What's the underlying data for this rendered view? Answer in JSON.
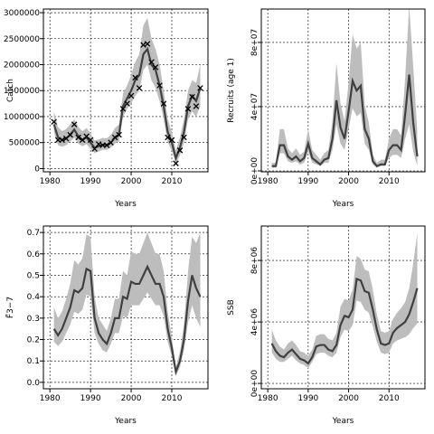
{
  "chart_data": [
    {
      "type": "line",
      "y_label": "Catch",
      "x_label": "Years",
      "x": [
        1981,
        1982,
        1983,
        1984,
        1985,
        1986,
        1987,
        1988,
        1989,
        1990,
        1991,
        1992,
        1993,
        1994,
        1995,
        1996,
        1997,
        1998,
        1999,
        2000,
        2001,
        2002,
        2003,
        2004,
        2005,
        2006,
        2007,
        2008,
        2009,
        2010,
        2011,
        2012,
        2013,
        2014,
        2015,
        2016,
        2017
      ],
      "values": [
        850000,
        600000,
        550000,
        580000,
        650000,
        750000,
        620000,
        550000,
        600000,
        500000,
        400000,
        430000,
        460000,
        450000,
        500000,
        600000,
        650000,
        1200000,
        1350000,
        1500000,
        1700000,
        1800000,
        2200000,
        2300000,
        2000000,
        1900000,
        1600000,
        1200000,
        700000,
        500000,
        200000,
        400000,
        700000,
        1200000,
        1400000,
        1300000,
        1550000
      ],
      "lower": [
        700000,
        450000,
        420000,
        450000,
        520000,
        600000,
        480000,
        430000,
        470000,
        380000,
        300000,
        330000,
        360000,
        360000,
        400000,
        480000,
        520000,
        1000000,
        1150000,
        1250000,
        1400000,
        1500000,
        1900000,
        2000000,
        1700000,
        1550000,
        1300000,
        950000,
        500000,
        350000,
        100000,
        250000,
        500000,
        950000,
        1100000,
        1000000,
        1200000
      ],
      "upper": [
        1100000,
        800000,
        720000,
        760000,
        850000,
        950000,
        800000,
        720000,
        780000,
        680000,
        540000,
        560000,
        590000,
        580000,
        650000,
        780000,
        850000,
        1450000,
        1600000,
        1800000,
        2050000,
        2200000,
        2750000,
        2900000,
        2500000,
        2300000,
        2000000,
        1500000,
        950000,
        700000,
        350000,
        600000,
        950000,
        1500000,
        1700000,
        1650000,
        2000000
      ],
      "observed": [
        900000,
        550000,
        550000,
        580000,
        650000,
        850000,
        600000,
        550000,
        620000,
        550000,
        380000,
        470000,
        450000,
        450000,
        500000,
        600000,
        650000,
        1150000,
        1250000,
        1400000,
        1750000,
        1550000,
        2380000,
        2400000,
        2050000,
        1950000,
        1600000,
        1250000,
        600000,
        550000,
        100000,
        350000,
        600000,
        1150000,
        1380000,
        1200000,
        1550000
      ],
      "color": "#404040",
      "band_color": "#bdbdbd",
      "grid": true,
      "xlim": [
        1978.4,
        2018.9
      ],
      "xticks": [
        1980,
        1990,
        2000,
        2010
      ],
      "ylim": [
        -62000,
        3070000
      ],
      "yticks": [
        0,
        500000,
        1000000,
        1500000,
        2000000,
        2500000,
        3000000
      ]
    },
    {
      "type": "line",
      "y_label": "Recruits (age 1)",
      "x_label": "Years",
      "x": [
        1981,
        1982,
        1983,
        1984,
        1985,
        1986,
        1987,
        1988,
        1989,
        1990,
        1991,
        1992,
        1993,
        1994,
        1995,
        1996,
        1997,
        1998,
        1999,
        2000,
        2001,
        2002,
        2003,
        2004,
        2005,
        2006,
        2007,
        2008,
        2009,
        2010,
        2011,
        2012,
        2013,
        2014,
        2015,
        2016,
        2017
      ],
      "values": [
        3000000,
        3000000,
        16000000,
        16000000,
        9000000,
        7000000,
        9000000,
        6000000,
        8000000,
        17000000,
        8000000,
        6000000,
        4000000,
        7000000,
        8000000,
        20000000,
        44000000,
        27000000,
        20000000,
        37000000,
        56000000,
        50000000,
        53000000,
        26000000,
        20000000,
        6000000,
        3000000,
        4000000,
        4000000,
        13000000,
        16000000,
        16000000,
        13000000,
        35000000,
        60000000,
        30000000,
        9000000
      ],
      "lower": [
        2000000,
        2000000,
        11000000,
        11000000,
        6000000,
        5000000,
        6000000,
        4000000,
        5000000,
        12000000,
        5000000,
        4000000,
        3000000,
        5000000,
        5000000,
        13000000,
        29000000,
        17000000,
        13000000,
        26000000,
        39000000,
        34000000,
        36000000,
        17000000,
        13000000,
        4000000,
        2000000,
        3000000,
        3000000,
        8000000,
        10000000,
        10000000,
        8000000,
        20000000,
        29000000,
        12000000,
        3000000
      ],
      "upper": [
        5000000,
        5000000,
        26000000,
        26000000,
        14000000,
        11000000,
        14000000,
        10000000,
        12000000,
        26000000,
        13000000,
        10000000,
        7000000,
        11000000,
        13000000,
        31000000,
        67000000,
        42000000,
        31000000,
        55000000,
        85000000,
        76000000,
        80000000,
        41000000,
        30000000,
        10000000,
        5000000,
        7000000,
        7000000,
        20000000,
        26000000,
        26000000,
        22000000,
        58000000,
        103000000,
        65000000,
        25000000
      ],
      "color": "#404040",
      "band_color": "#bdbdbd",
      "grid": true,
      "xlim": [
        1978.4,
        2018.9
      ],
      "xticks": [
        1980,
        1990,
        2000,
        2010
      ],
      "ylim": [
        -560000,
        100800000
      ],
      "yticks": [
        {
          "value": 0,
          "label": "0e+00"
        },
        {
          "value": 40000000,
          "label": "4e+07"
        },
        {
          "value": 80000000,
          "label": "8e+07"
        }
      ]
    },
    {
      "type": "line",
      "y_label": "F̄3−7",
      "x_label": "Years",
      "x": [
        1981,
        1982,
        1983,
        1984,
        1985,
        1986,
        1987,
        1988,
        1989,
        1990,
        1991,
        1992,
        1993,
        1994,
        1995,
        1996,
        1997,
        1998,
        1999,
        2000,
        2001,
        2002,
        2003,
        2004,
        2005,
        2006,
        2007,
        2008,
        2009,
        2010,
        2011,
        2012,
        2013,
        2014,
        2015,
        2016,
        2017
      ],
      "values": [
        0.25,
        0.22,
        0.25,
        0.3,
        0.35,
        0.43,
        0.42,
        0.44,
        0.53,
        0.52,
        0.3,
        0.23,
        0.2,
        0.18,
        0.23,
        0.3,
        0.3,
        0.4,
        0.39,
        0.47,
        0.46,
        0.46,
        0.5,
        0.54,
        0.5,
        0.46,
        0.46,
        0.4,
        0.25,
        0.16,
        0.05,
        0.1,
        0.2,
        0.38,
        0.5,
        0.44,
        0.4
      ],
      "lower": [
        0.19,
        0.17,
        0.19,
        0.23,
        0.27,
        0.33,
        0.32,
        0.34,
        0.41,
        0.4,
        0.23,
        0.18,
        0.15,
        0.14,
        0.18,
        0.23,
        0.23,
        0.31,
        0.3,
        0.36,
        0.36,
        0.36,
        0.39,
        0.42,
        0.39,
        0.36,
        0.36,
        0.31,
        0.19,
        0.12,
        0.03,
        0.07,
        0.15,
        0.28,
        0.36,
        0.3,
        0.26
      ],
      "upper": [
        0.35,
        0.3,
        0.33,
        0.39,
        0.46,
        0.57,
        0.55,
        0.58,
        0.69,
        0.68,
        0.4,
        0.3,
        0.27,
        0.24,
        0.3,
        0.39,
        0.39,
        0.52,
        0.5,
        0.61,
        0.6,
        0.6,
        0.65,
        0.7,
        0.65,
        0.6,
        0.6,
        0.52,
        0.33,
        0.21,
        0.07,
        0.14,
        0.27,
        0.52,
        0.68,
        0.65,
        0.7
      ],
      "color": "#404040",
      "band_color": "#bdbdbd",
      "grid": true,
      "xlim": [
        1978.4,
        2018.9
      ],
      "xticks": [
        1980,
        1990,
        2000,
        2010
      ],
      "ylim": [
        -0.03,
        0.73
      ],
      "yticks": [
        {
          "value": 0,
          "label": "0.0"
        },
        0.1,
        0.2,
        0.3,
        0.4,
        0.5,
        0.6,
        0.7
      ]
    },
    {
      "type": "line",
      "y_label": "SSB",
      "x_label": "Years",
      "x": [
        1981,
        1982,
        1983,
        1984,
        1985,
        1986,
        1987,
        1988,
        1989,
        1990,
        1991,
        1992,
        1993,
        1994,
        1995,
        1996,
        1997,
        1998,
        1999,
        2000,
        2001,
        2002,
        2003,
        2004,
        2005,
        2006,
        2007,
        2008,
        2009,
        2010,
        2011,
        2012,
        2013,
        2014,
        2015,
        2016,
        2017
      ],
      "values": [
        2600000,
        2100000,
        1800000,
        1700000,
        2000000,
        2200000,
        1900000,
        1600000,
        1500000,
        1300000,
        1700000,
        2400000,
        2500000,
        2500000,
        2200000,
        2100000,
        2500000,
        3800000,
        4400000,
        4300000,
        4800000,
        6800000,
        6700000,
        6000000,
        5900000,
        4800000,
        3500000,
        2600000,
        2500000,
        2600000,
        3300000,
        3600000,
        3800000,
        4000000,
        4500000,
        5300000,
        6200000
      ],
      "lower": [
        2000000,
        1600000,
        1400000,
        1400000,
        1600000,
        1800000,
        1500000,
        1300000,
        1200000,
        1000000,
        1400000,
        1900000,
        2000000,
        2000000,
        1800000,
        1700000,
        2000000,
        3000000,
        3500000,
        3400000,
        3800000,
        5400000,
        5300000,
        4800000,
        4600000,
        3700000,
        2700000,
        2000000,
        1900000,
        2000000,
        2600000,
        2800000,
        2900000,
        3000000,
        3200000,
        3600000,
        3900000
      ],
      "upper": [
        3500000,
        2800000,
        2400000,
        2200000,
        2600000,
        2800000,
        2500000,
        2100000,
        2000000,
        1800000,
        2200000,
        3100000,
        3200000,
        3200000,
        2900000,
        2800000,
        3300000,
        5000000,
        5500000,
        5400000,
        6100000,
        8300000,
        8100000,
        7400000,
        7300000,
        6100000,
        4500000,
        3400000,
        3300000,
        3400000,
        4200000,
        4600000,
        4900000,
        5300000,
        6200000,
        7800000,
        9800000
      ],
      "color": "#404040",
      "band_color": "#bdbdbd",
      "grid": true,
      "xlim": [
        1978.4,
        2018.9
      ],
      "xticks": [
        1980,
        1990,
        2000,
        2010
      ],
      "ylim": [
        -350000,
        10240000
      ],
      "yticks": [
        {
          "value": 0,
          "label": "0e+00"
        },
        {
          "value": 4000000,
          "label": "4e+06"
        },
        {
          "value": 8000000,
          "label": "8e+06"
        }
      ]
    }
  ]
}
